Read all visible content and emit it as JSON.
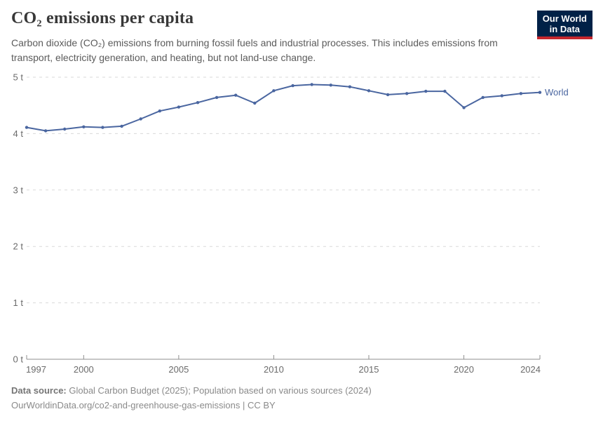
{
  "header": {
    "title": "CO₂ emissions per capita",
    "subtitle": "Carbon dioxide (CO₂) emissions from burning fossil fuels and industrial processes. This includes emissions from transport, electricity generation, and heating, but not land-use change.",
    "logo": {
      "line1": "Our World",
      "line2": "in Data",
      "bg_color": "#002147",
      "accent_color": "#c5272d"
    }
  },
  "chart_data": {
    "type": "line",
    "title": "CO₂ emissions per capita",
    "unit": "t",
    "xlabel": "",
    "ylabel": "",
    "xlim": [
      1997,
      2024
    ],
    "ylim": [
      0,
      5
    ],
    "grid": "horizontal-dashed",
    "legend_position": "end-of-line-label",
    "x": [
      1997,
      1998,
      1999,
      2000,
      2001,
      2002,
      2003,
      2004,
      2005,
      2006,
      2007,
      2008,
      2009,
      2010,
      2011,
      2012,
      2013,
      2014,
      2015,
      2016,
      2017,
      2018,
      2019,
      2020,
      2021,
      2022,
      2023,
      2024
    ],
    "series": [
      {
        "name": "World",
        "color": "#4a66a0",
        "values": [
          4.11,
          4.05,
          4.08,
          4.12,
          4.11,
          4.13,
          4.26,
          4.4,
          4.47,
          4.55,
          4.64,
          4.68,
          4.54,
          4.76,
          4.85,
          4.87,
          4.86,
          4.83,
          4.76,
          4.69,
          4.71,
          4.75,
          4.75,
          4.46,
          4.64,
          4.67,
          4.71,
          4.73
        ]
      }
    ],
    "yticks": [
      {
        "value": 0,
        "label": "0 t"
      },
      {
        "value": 1,
        "label": "1 t"
      },
      {
        "value": 2,
        "label": "2 t"
      },
      {
        "value": 3,
        "label": "3 t"
      },
      {
        "value": 4,
        "label": "4 t"
      },
      {
        "value": 5,
        "label": "5 t"
      }
    ],
    "xticks": [
      {
        "value": 1997,
        "label": "1997"
      },
      {
        "value": 2000,
        "label": "2000"
      },
      {
        "value": 2005,
        "label": "2005"
      },
      {
        "value": 2010,
        "label": "2010"
      },
      {
        "value": 2015,
        "label": "2015"
      },
      {
        "value": 2020,
        "label": "2020"
      },
      {
        "value": 2024,
        "label": "2024"
      }
    ]
  },
  "footer": {
    "data_source_label": "Data source:",
    "data_source_text": " Global Carbon Budget (2025); Population based on various sources (2024)",
    "citation": "OurWorldinData.org/co2-and-greenhouse-gas-emissions | CC BY"
  }
}
